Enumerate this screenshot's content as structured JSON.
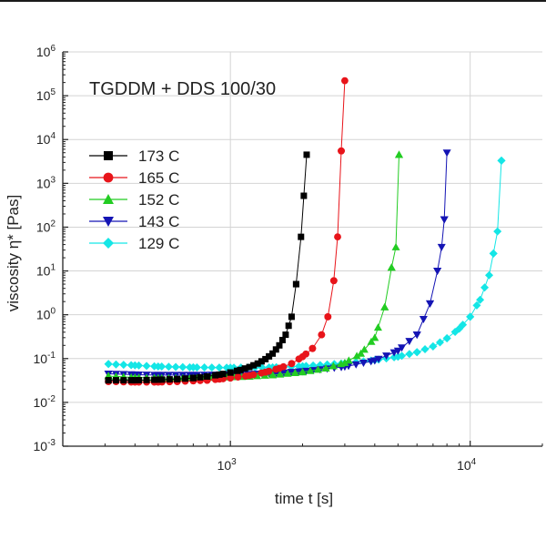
{
  "chart_data": {
    "type": "scatter",
    "scale": {
      "x": "log",
      "y": "log"
    },
    "title": "TGDDM + DDS 100/30",
    "xlabel": "time t [s]",
    "ylabel": "viscosity η* [Pas]",
    "xlim": [
      200,
      20000
    ],
    "ylim": [
      0.001,
      1000000
    ],
    "x_ticks": [
      {
        "value": 1000,
        "base": "10",
        "exp": "3"
      },
      {
        "value": 10000,
        "base": "10",
        "exp": "4"
      }
    ],
    "y_ticks": [
      {
        "value": 0.001,
        "base": "10",
        "exp": "-3"
      },
      {
        "value": 0.01,
        "base": "10",
        "exp": "-2"
      },
      {
        "value": 0.1,
        "base": "10",
        "exp": "-1"
      },
      {
        "value": 1,
        "base": "10",
        "exp": "0"
      },
      {
        "value": 10,
        "base": "10",
        "exp": "1"
      },
      {
        "value": 100,
        "base": "10",
        "exp": "2"
      },
      {
        "value": 1000,
        "base": "10",
        "exp": "3"
      },
      {
        "value": 10000,
        "base": "10",
        "exp": "4"
      },
      {
        "value": 100000,
        "base": "10",
        "exp": "5"
      },
      {
        "value": 1000000,
        "base": "10",
        "exp": "6"
      }
    ],
    "legend_position": "upper-left",
    "grid": true,
    "series": [
      {
        "name": "173 C",
        "color": "#000000",
        "marker": "square",
        "points": [
          [
            310,
            0.032
          ],
          [
            400,
            0.032
          ],
          [
            500,
            0.033
          ],
          [
            600,
            0.034
          ],
          [
            700,
            0.036
          ],
          [
            800,
            0.039
          ],
          [
            900,
            0.043
          ],
          [
            1000,
            0.048
          ],
          [
            1100,
            0.055
          ],
          [
            1200,
            0.064
          ],
          [
            1300,
            0.077
          ],
          [
            1400,
            0.097
          ],
          [
            1500,
            0.13
          ],
          [
            1600,
            0.2
          ],
          [
            1700,
            0.35
          ],
          [
            1800,
            0.9
          ],
          [
            1880,
            5
          ],
          [
            1970,
            60
          ],
          [
            2080,
            4500
          ]
        ]
      },
      {
        "name": "165 C",
        "color": "#e8141a",
        "marker": "circle",
        "points": [
          [
            310,
            0.03
          ],
          [
            400,
            0.029
          ],
          [
            500,
            0.029
          ],
          [
            600,
            0.03
          ],
          [
            700,
            0.031
          ],
          [
            800,
            0.032
          ],
          [
            900,
            0.034
          ],
          [
            1000,
            0.036
          ],
          [
            1200,
            0.041
          ],
          [
            1400,
            0.049
          ],
          [
            1600,
            0.06
          ],
          [
            1800,
            0.077
          ],
          [
            2000,
            0.11
          ],
          [
            2200,
            0.17
          ],
          [
            2400,
            0.35
          ],
          [
            2550,
            0.9
          ],
          [
            2700,
            6
          ],
          [
            2800,
            60
          ],
          [
            2900,
            5500
          ],
          [
            3000,
            220000
          ]
        ]
      },
      {
        "name": "152 C",
        "color": "#22cc22",
        "marker": "triangle-up",
        "points": [
          [
            310,
            0.04
          ],
          [
            400,
            0.037
          ],
          [
            500,
            0.036
          ],
          [
            700,
            0.036
          ],
          [
            900,
            0.037
          ],
          [
            1200,
            0.039
          ],
          [
            1500,
            0.042
          ],
          [
            2000,
            0.049
          ],
          [
            2500,
            0.06
          ],
          [
            3000,
            0.08
          ],
          [
            3500,
            0.13
          ],
          [
            4000,
            0.3
          ],
          [
            4400,
            1.5
          ],
          [
            4700,
            12
          ],
          [
            4900,
            35
          ],
          [
            5050,
            4500
          ]
        ]
      },
      {
        "name": "143 C",
        "color": "#1414b4",
        "marker": "triangle-down",
        "points": [
          [
            310,
            0.045
          ],
          [
            400,
            0.043
          ],
          [
            500,
            0.042
          ],
          [
            700,
            0.042
          ],
          [
            1000,
            0.043
          ],
          [
            1500,
            0.046
          ],
          [
            2000,
            0.051
          ],
          [
            3000,
            0.065
          ],
          [
            4000,
            0.09
          ],
          [
            5000,
            0.15
          ],
          [
            6000,
            0.35
          ],
          [
            6800,
            1.8
          ],
          [
            7300,
            10
          ],
          [
            7600,
            35
          ],
          [
            7800,
            150
          ],
          [
            8000,
            5000
          ]
        ]
      },
      {
        "name": "129 C",
        "color": "#14e6e6",
        "marker": "diamond",
        "points": [
          [
            310,
            0.075
          ],
          [
            400,
            0.07
          ],
          [
            500,
            0.066
          ],
          [
            700,
            0.063
          ],
          [
            1000,
            0.062
          ],
          [
            1500,
            0.063
          ],
          [
            2000,
            0.067
          ],
          [
            3000,
            0.078
          ],
          [
            4000,
            0.092
          ],
          [
            5000,
            0.11
          ],
          [
            6000,
            0.14
          ],
          [
            7000,
            0.19
          ],
          [
            8000,
            0.29
          ],
          [
            9000,
            0.48
          ],
          [
            10000,
            0.9
          ],
          [
            11000,
            2.2
          ],
          [
            12000,
            8
          ],
          [
            12500,
            25
          ],
          [
            13000,
            80
          ],
          [
            13500,
            3300
          ]
        ]
      }
    ]
  }
}
